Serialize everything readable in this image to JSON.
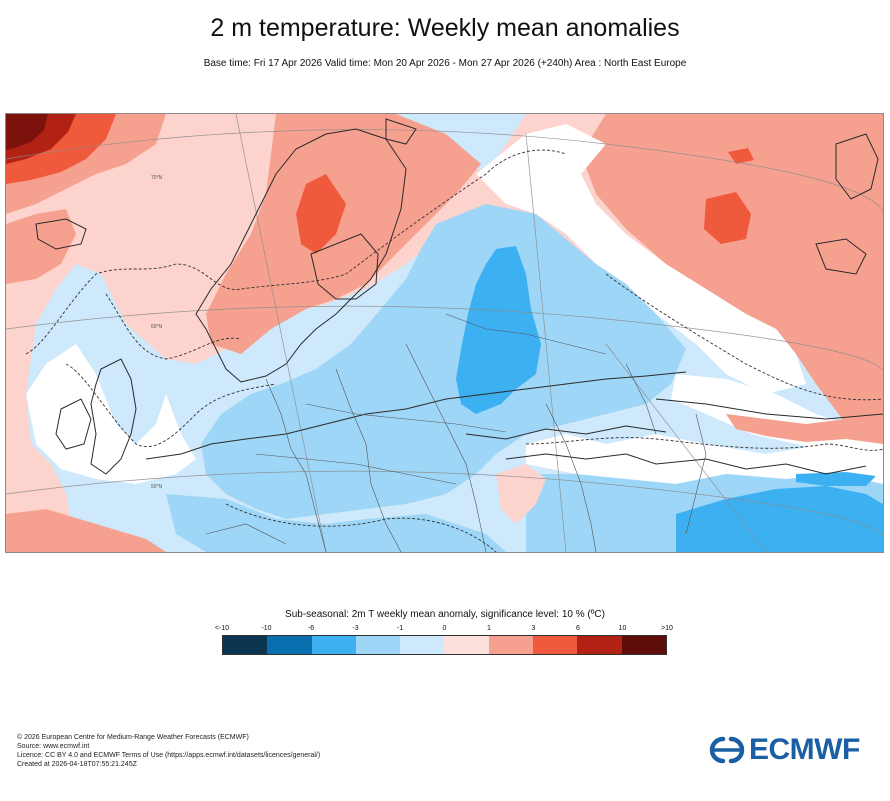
{
  "header": {
    "title": "2 m temperature: Weekly mean anomalies",
    "subtitle": "Base time: Fri 17 Apr 2026 Valid time: Mon 20 Apr 2026 - Mon 27 Apr 2026 (+240h) Area : North East Europe"
  },
  "map": {
    "region": "North East Europe",
    "latitude_labels": [
      "70°N",
      "60°N",
      "50°N"
    ],
    "colors": {
      "deep_red": "#7b120c",
      "dark_red": "#b22214",
      "red": "#f05a3c",
      "salmon": "#f6a08f",
      "light_pink": "#fcd3cd",
      "white": "#ffffff",
      "pale_blue": "#cde9fb",
      "light_blue": "#9ed6f8",
      "blue": "#3db0f2",
      "coastline": "#2a2a2a",
      "border": "#555555"
    }
  },
  "legend": {
    "title": "Sub-seasonal: 2m T weekly mean anomaly, significance level: 10 % (ºC)",
    "labels": [
      "<-10",
      "-10",
      "-6",
      "-3",
      "-1",
      "0",
      "1",
      "3",
      "6",
      "10",
      ">10"
    ],
    "colors": [
      "#0b3550",
      "#0a6fae",
      "#3db0f2",
      "#9ed6f8",
      "#cde9fb",
      "#fce0dc",
      "#f6a08f",
      "#f05a3c",
      "#b22214",
      "#5e0d08"
    ]
  },
  "footer": {
    "lines": [
      "© 2026 European Centre for Medium-Range Weather Forecasts (ECMWF)",
      "Source: www.ecmwf.int",
      "Licence: CC BY 4.0 and ECMWF Terms of Use (https://apps.ecmwf.int/datasets/licences/general/)",
      "Created at 2026-04-18T07:55:21.245Z"
    ]
  },
  "logo": {
    "text": "ECMWF"
  }
}
